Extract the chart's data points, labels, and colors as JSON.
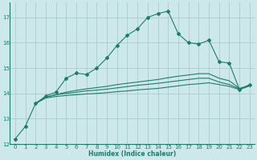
{
  "xlabel": "Humidex (Indice chaleur)",
  "xlim": [
    -0.5,
    23.5
  ],
  "ylim": [
    12,
    17.6
  ],
  "yticks": [
    12,
    13,
    14,
    15,
    16,
    17
  ],
  "xticks": [
    0,
    1,
    2,
    3,
    4,
    5,
    6,
    7,
    8,
    9,
    10,
    11,
    12,
    13,
    14,
    15,
    16,
    17,
    18,
    19,
    20,
    21,
    22,
    23
  ],
  "bg_color": "#cde8ea",
  "grid_color": "#aaccce",
  "line_color": "#1e7b6e",
  "line1_x": [
    0,
    1,
    2,
    3,
    4,
    5,
    6,
    7,
    8,
    9,
    10,
    11,
    12,
    13,
    14,
    15,
    16,
    17,
    18,
    19,
    20,
    21,
    22,
    23
  ],
  "line1_y": [
    12.2,
    12.7,
    13.6,
    13.9,
    14.05,
    14.6,
    14.8,
    14.75,
    15.0,
    15.4,
    15.9,
    16.3,
    16.55,
    17.0,
    17.15,
    17.25,
    16.35,
    16.0,
    15.95,
    16.1,
    15.25,
    15.2,
    14.15,
    14.35
  ],
  "line2_x": [
    2,
    3,
    4,
    5,
    6,
    7,
    8,
    9,
    10,
    11,
    12,
    13,
    14,
    15,
    16,
    17,
    18,
    19,
    20,
    21,
    22,
    23
  ],
  "line2_y": [
    13.6,
    13.85,
    13.95,
    14.05,
    14.12,
    14.18,
    14.23,
    14.28,
    14.35,
    14.4,
    14.45,
    14.5,
    14.55,
    14.62,
    14.68,
    14.73,
    14.78,
    14.78,
    14.6,
    14.5,
    14.2,
    14.32
  ],
  "line3_x": [
    2,
    3,
    4,
    5,
    6,
    7,
    8,
    9,
    10,
    11,
    12,
    13,
    14,
    15,
    16,
    17,
    18,
    19,
    20,
    21,
    22,
    23
  ],
  "line3_y": [
    13.6,
    13.85,
    13.95,
    14.0,
    14.05,
    14.1,
    14.13,
    14.17,
    14.22,
    14.27,
    14.32,
    14.36,
    14.4,
    14.45,
    14.5,
    14.55,
    14.6,
    14.6,
    14.45,
    14.35,
    14.18,
    14.3
  ],
  "line4_x": [
    2,
    3,
    4,
    5,
    6,
    7,
    8,
    9,
    10,
    11,
    12,
    13,
    14,
    15,
    16,
    17,
    18,
    19,
    20,
    21,
    22,
    23
  ],
  "line4_y": [
    13.6,
    13.82,
    13.88,
    13.92,
    13.95,
    13.98,
    14.0,
    14.03,
    14.07,
    14.1,
    14.14,
    14.17,
    14.2,
    14.25,
    14.3,
    14.35,
    14.38,
    14.42,
    14.35,
    14.28,
    14.15,
    14.3
  ]
}
